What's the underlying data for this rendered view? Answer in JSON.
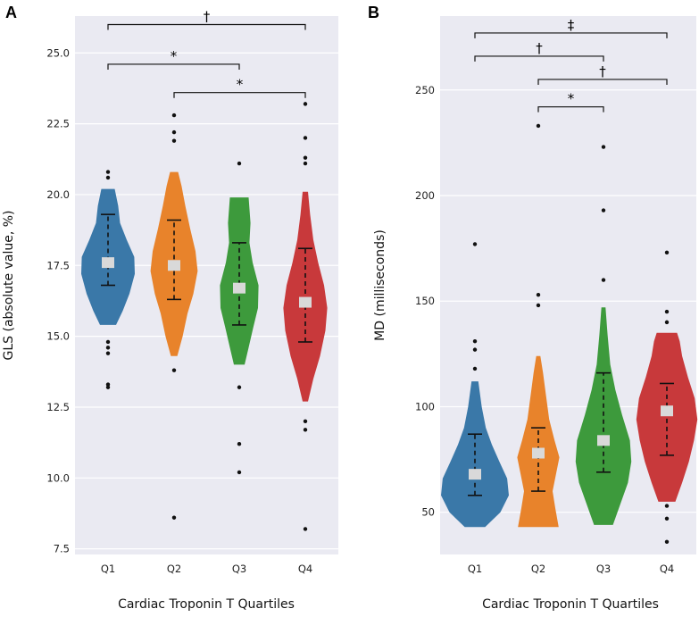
{
  "chart_data": [
    {
      "type": "violin",
      "panel_label": "A",
      "xlabel": "Cardiac Troponin T Quartiles",
      "ylabel": "GLS (absolute value, %)",
      "categories": [
        "Q1",
        "Q2",
        "Q3",
        "Q4"
      ],
      "colors": [
        "#3a78a8",
        "#e8832b",
        "#3d9a3c",
        "#c8393b"
      ],
      "ylim": [
        7.3,
        26.3
      ],
      "yticks": [
        7.5,
        10.0,
        12.5,
        15.0,
        17.5,
        20.0,
        22.5,
        25.0
      ],
      "ytick_labels": [
        "7.5",
        "10.0",
        "12.5",
        "15.0",
        "17.5",
        "20.0",
        "22.5",
        "25.0"
      ],
      "groups": [
        {
          "name": "Q1",
          "median": 17.6,
          "whisker_low": 16.8,
          "whisker_high": 19.3,
          "violin_min": 15.4,
          "violin_max": 20.2,
          "outliers": [
            20.8,
            20.6,
            14.8,
            14.6,
            14.4,
            13.3,
            13.2
          ],
          "profile": [
            [
              15.4,
              0.3
            ],
            [
              15.9,
              0.55
            ],
            [
              16.5,
              0.8
            ],
            [
              17.2,
              1.0
            ],
            [
              17.8,
              0.98
            ],
            [
              18.4,
              0.7
            ],
            [
              19.0,
              0.45
            ],
            [
              19.6,
              0.38
            ],
            [
              20.2,
              0.25
            ]
          ]
        },
        {
          "name": "Q2",
          "median": 17.5,
          "whisker_low": 16.3,
          "whisker_high": 19.1,
          "violin_min": 14.3,
          "violin_max": 20.8,
          "outliers": [
            22.8,
            22.2,
            21.9,
            13.8,
            8.6
          ],
          "profile": [
            [
              14.3,
              0.12
            ],
            [
              15.0,
              0.32
            ],
            [
              15.8,
              0.5
            ],
            [
              16.5,
              0.72
            ],
            [
              17.3,
              0.88
            ],
            [
              18.0,
              0.8
            ],
            [
              18.8,
              0.6
            ],
            [
              19.6,
              0.42
            ],
            [
              20.3,
              0.28
            ],
            [
              20.8,
              0.15
            ]
          ]
        },
        {
          "name": "Q3",
          "median": 16.7,
          "whisker_low": 15.4,
          "whisker_high": 18.3,
          "violin_min": 14.0,
          "violin_max": 19.9,
          "outliers": [
            21.1,
            13.2,
            11.2,
            10.2
          ],
          "profile": [
            [
              14.0,
              0.2
            ],
            [
              14.6,
              0.35
            ],
            [
              15.3,
              0.52
            ],
            [
              16.0,
              0.7
            ],
            [
              16.8,
              0.72
            ],
            [
              17.6,
              0.5
            ],
            [
              18.3,
              0.38
            ],
            [
              19.0,
              0.42
            ],
            [
              19.9,
              0.35
            ]
          ]
        },
        {
          "name": "Q4",
          "median": 16.2,
          "whisker_low": 14.8,
          "whisker_high": 18.1,
          "violin_min": 12.7,
          "violin_max": 20.1,
          "outliers": [
            23.2,
            22.0,
            21.3,
            21.1,
            12.0,
            11.7,
            8.2
          ],
          "profile": [
            [
              12.7,
              0.1
            ],
            [
              13.5,
              0.3
            ],
            [
              14.3,
              0.55
            ],
            [
              15.2,
              0.75
            ],
            [
              16.0,
              0.82
            ],
            [
              16.8,
              0.7
            ],
            [
              17.6,
              0.48
            ],
            [
              18.4,
              0.3
            ],
            [
              19.3,
              0.18
            ],
            [
              20.1,
              0.1
            ]
          ]
        }
      ],
      "brackets": [
        {
          "from": "Q1",
          "to": "Q4",
          "y": 26.0,
          "label": "†"
        },
        {
          "from": "Q1",
          "to": "Q3",
          "y": 24.6,
          "label": "*"
        },
        {
          "from": "Q2",
          "to": "Q4",
          "y": 23.6,
          "label": "*"
        }
      ]
    },
    {
      "type": "violin",
      "panel_label": "B",
      "xlabel": "Cardiac Troponin T Quartiles",
      "ylabel": "MD (milliseconds)",
      "categories": [
        "Q1",
        "Q2",
        "Q3",
        "Q4"
      ],
      "colors": [
        "#3a78a8",
        "#e8832b",
        "#3d9a3c",
        "#c8393b"
      ],
      "ylim": [
        30,
        285
      ],
      "yticks": [
        50,
        100,
        150,
        200,
        250
      ],
      "ytick_labels": [
        "50",
        "100",
        "150",
        "200",
        "250"
      ],
      "groups": [
        {
          "name": "Q1",
          "median": 68,
          "whisker_low": 58,
          "whisker_high": 87,
          "violin_min": 43,
          "violin_max": 112,
          "outliers": [
            177,
            131,
            127,
            118
          ],
          "profile": [
            [
              43,
              0.3
            ],
            [
              50,
              0.75
            ],
            [
              58,
              1.0
            ],
            [
              66,
              0.95
            ],
            [
              74,
              0.72
            ],
            [
              82,
              0.5
            ],
            [
              90,
              0.32
            ],
            [
              100,
              0.2
            ],
            [
              112,
              0.1
            ]
          ]
        },
        {
          "name": "Q2",
          "median": 78,
          "whisker_low": 60,
          "whisker_high": 90,
          "violin_min": 43,
          "violin_max": 124,
          "outliers": [
            233,
            153,
            148
          ],
          "profile": [
            [
              43,
              0.6
            ],
            [
              52,
              0.5
            ],
            [
              60,
              0.42
            ],
            [
              68,
              0.52
            ],
            [
              76,
              0.62
            ],
            [
              84,
              0.48
            ],
            [
              94,
              0.32
            ],
            [
              106,
              0.22
            ],
            [
              116,
              0.14
            ],
            [
              124,
              0.06
            ]
          ]
        },
        {
          "name": "Q3",
          "median": 84,
          "whisker_low": 69,
          "whisker_high": 116,
          "violin_min": 44,
          "violin_max": 147,
          "outliers": [
            223,
            193,
            160
          ],
          "profile": [
            [
              44,
              0.28
            ],
            [
              54,
              0.5
            ],
            [
              64,
              0.72
            ],
            [
              74,
              0.82
            ],
            [
              84,
              0.78
            ],
            [
              96,
              0.55
            ],
            [
              108,
              0.35
            ],
            [
              120,
              0.2
            ],
            [
              134,
              0.12
            ],
            [
              147,
              0.06
            ]
          ]
        },
        {
          "name": "Q4",
          "median": 98,
          "whisker_low": 77,
          "whisker_high": 111,
          "violin_min": 55,
          "violin_max": 135,
          "outliers": [
            173,
            145,
            140,
            53,
            47,
            36
          ],
          "profile": [
            [
              55,
              0.25
            ],
            [
              64,
              0.45
            ],
            [
              74,
              0.65
            ],
            [
              84,
              0.8
            ],
            [
              94,
              0.9
            ],
            [
              104,
              0.82
            ],
            [
              114,
              0.62
            ],
            [
              124,
              0.45
            ],
            [
              131,
              0.38
            ],
            [
              135,
              0.3
            ]
          ]
        }
      ],
      "brackets": [
        {
          "from": "Q1",
          "to": "Q4",
          "y": 277,
          "label": "‡"
        },
        {
          "from": "Q1",
          "to": "Q3",
          "y": 266,
          "label": "†"
        },
        {
          "from": "Q2",
          "to": "Q4",
          "y": 255,
          "label": "†"
        },
        {
          "from": "Q2",
          "to": "Q3",
          "y": 242,
          "label": "*"
        }
      ]
    }
  ]
}
